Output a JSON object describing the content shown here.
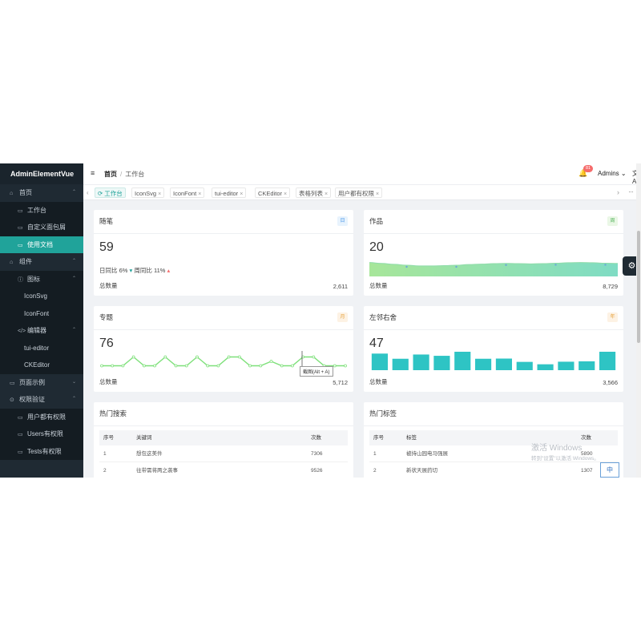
{
  "sidebar": {
    "logo": "AdminElementVue",
    "items": [
      {
        "label": "首页",
        "icon": "home-icon",
        "glyph": "⌂",
        "arrow": "⌃"
      },
      {
        "label": "工作台",
        "icon": "monitor-icon",
        "glyph": "▭"
      },
      {
        "label": "自定义面包屑",
        "icon": "monitor-icon",
        "glyph": "▭"
      },
      {
        "label": "使用文档",
        "icon": "monitor-icon",
        "glyph": "▭"
      },
      {
        "label": "组件",
        "icon": "components-icon",
        "glyph": "⌂",
        "arrow": "⌃"
      },
      {
        "label": "图标",
        "icon": "info-icon",
        "glyph": "ⓘ",
        "arrow": "⌃"
      },
      {
        "label": "IconSvg"
      },
      {
        "label": "IconFont"
      },
      {
        "label": "编辑器",
        "icon": "code-icon",
        "glyph": "</>",
        "arrow": "⌃"
      },
      {
        "label": "tui-editor"
      },
      {
        "label": "CKEditor"
      },
      {
        "label": "页面示例",
        "icon": "page-icon",
        "glyph": "▭",
        "arrow": "⌄"
      },
      {
        "label": "权限验证",
        "icon": "lock-icon",
        "glyph": "⊙",
        "arrow": "⌃"
      },
      {
        "label": "用户都有权限",
        "icon": "monitor-icon",
        "glyph": "▭"
      },
      {
        "label": "Users有权限",
        "icon": "monitor-icon",
        "glyph": "▭"
      },
      {
        "label": "Tests有权限",
        "icon": "monitor-icon",
        "glyph": "▭"
      }
    ]
  },
  "header": {
    "menu_glyph": "≡",
    "breadcrumb": {
      "home": "首页",
      "sep": "/",
      "current": "工作台"
    },
    "bell_glyph": "🔔",
    "badge": "81",
    "user": "Admins ⌄",
    "lang_glyph": "文A"
  },
  "tabs": {
    "left_glyph": "‹",
    "right_glyph": "›",
    "more_glyph": "···",
    "close_glyph": "×",
    "items": [
      {
        "label": "工作台",
        "prefix": "⟳"
      },
      {
        "label": "IconSvg"
      },
      {
        "label": "IconFont"
      },
      {
        "label": "tui-editor"
      },
      {
        "label": "CKEditor"
      },
      {
        "label": "表格列表"
      },
      {
        "label": "用户都有权限"
      }
    ]
  },
  "cards": {
    "notes": {
      "title": "随笔",
      "tag": "日",
      "tag_bg": "#e8f3fd",
      "tag_color": "#3a8ee6",
      "value": "59",
      "compare_day": "日同比 6%",
      "compare_day_glyph": "▾",
      "compare_week": "周同比 11%",
      "compare_week_glyph": "▴",
      "total_label": "总数量",
      "total": "2,611"
    },
    "works": {
      "title": "作品",
      "tag": "周",
      "tag_bg": "#eaf7e6",
      "tag_color": "#52b35a",
      "value": "20",
      "total_label": "总数量",
      "total": "8,729"
    },
    "topics": {
      "title": "专题",
      "tag": "月",
      "tag_bg": "#fdf2e4",
      "tag_color": "#e6a23c",
      "value": "76",
      "total_label": "总数量",
      "total": "5,712"
    },
    "neighbors": {
      "title": "左邻右舍",
      "tag": "年",
      "tag_bg": "#fdf2e4",
      "tag_color": "#e6a23c",
      "value": "47",
      "total_label": "总数量",
      "total": "3,566"
    }
  },
  "hot_search": {
    "title": "热门搜索",
    "columns": [
      "序号",
      "关键词",
      "次数"
    ],
    "rows": [
      [
        "1",
        "想包这美件",
        "7306"
      ],
      [
        "2",
        "往带需将两之袭事",
        "9526"
      ]
    ]
  },
  "hot_tags": {
    "title": "热门标签",
    "columns": [
      "序号",
      "标签",
      "次数"
    ],
    "rows": [
      [
        "1",
        "被持山园电马强展",
        "5890"
      ],
      [
        "2",
        "新状天展药切",
        "1307"
      ]
    ]
  },
  "overlays": {
    "gear_glyph": "⚙",
    "tooltip": "截图(Alt + A)",
    "watermark_line1": "激活 Windows",
    "watermark_line2": "转到\"设置\"以激活 Windows。",
    "ime": "中"
  },
  "colors": {
    "accent": "#20a39a",
    "sidebar_bg": "#1f2a33",
    "teal_bar": "#2ec4c4",
    "green_line": "#7ee07a",
    "area": "#8fe1c4"
  },
  "chart_data": [
    {
      "type": "area",
      "title": "作品",
      "series": [
        {
          "values": [
            62,
            58,
            54,
            50,
            47,
            47,
            48,
            50,
            53,
            55,
            57,
            58,
            57,
            56,
            57,
            59,
            61,
            62,
            61,
            59,
            58
          ]
        }
      ],
      "ylim": [
        0,
        100
      ]
    },
    {
      "type": "line",
      "title": "专题",
      "series": [
        {
          "values": [
            1,
            1,
            1,
            3,
            1,
            1,
            3,
            1,
            1,
            3,
            1,
            1,
            3,
            3,
            1,
            1,
            2,
            1,
            1,
            3,
            3,
            1,
            1,
            1
          ]
        }
      ],
      "ylim": [
        0,
        4
      ]
    },
    {
      "type": "bar",
      "title": "左邻右舍",
      "values": [
        90,
        62,
        85,
        78,
        100,
        62,
        63,
        45,
        32,
        46,
        48,
        100
      ],
      "ylim": [
        0,
        100
      ]
    }
  ]
}
